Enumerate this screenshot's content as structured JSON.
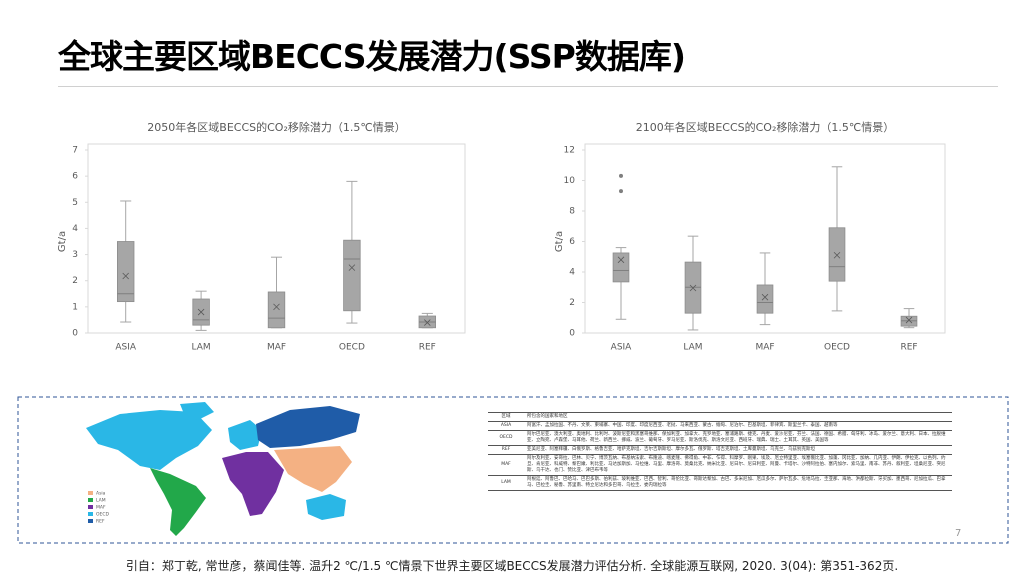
{
  "title": "全球主要区域BECCS发展潜力(SSP数据库)",
  "chart_data": [
    {
      "type": "box",
      "title": "2050年各区域BECCS的CO₂移除潜力（1.5℃情景）",
      "y_label": "Gt/a",
      "color": "#a6a6a6",
      "categories": [
        "ASIA",
        "LAM",
        "MAF",
        "OECD",
        "REF"
      ],
      "boxes": [
        {
          "min": 0.42,
          "q1": 1.2,
          "median": 1.5,
          "q3": 3.5,
          "max": 5.05,
          "mean": 2.18,
          "outliers": []
        },
        {
          "min": 0.1,
          "q1": 0.3,
          "median": 0.5,
          "q3": 1.3,
          "max": 1.6,
          "mean": 0.8,
          "outliers": []
        },
        {
          "min": 0.2,
          "q1": 0.2,
          "median": 0.57,
          "q3": 1.57,
          "max": 2.9,
          "mean": 1.0,
          "outliers": []
        },
        {
          "min": 0.38,
          "q1": 0.85,
          "median": 2.83,
          "q3": 3.55,
          "max": 5.8,
          "mean": 2.5,
          "outliers": []
        },
        {
          "min": 0.2,
          "q1": 0.2,
          "median": 0.42,
          "q3": 0.65,
          "max": 0.75,
          "mean": 0.4,
          "outliers": []
        }
      ],
      "ylim": [
        0,
        7
      ],
      "yticks": [
        0,
        1,
        2,
        3,
        4,
        5,
        6,
        7
      ],
      "grid": false
    },
    {
      "type": "box",
      "title": "2100年各区域BECCS的CO₂移除潜力（1.5℃情景）",
      "y_label": "Gt/a",
      "color": "#a6a6a6",
      "categories": [
        "ASIA",
        "LAM",
        "MAF",
        "OECD",
        "REF"
      ],
      "boxes": [
        {
          "min": 0.9,
          "q1": 3.35,
          "median": 4.1,
          "q3": 5.25,
          "max": 5.6,
          "mean": 4.8,
          "outliers": [
            10.3,
            9.3
          ]
        },
        {
          "min": 0.2,
          "q1": 1.3,
          "median": 3.0,
          "q3": 4.65,
          "max": 6.35,
          "mean": 2.95,
          "outliers": []
        },
        {
          "min": 0.55,
          "q1": 1.3,
          "median": 2.0,
          "q3": 3.15,
          "max": 5.25,
          "mean": 2.35,
          "outliers": []
        },
        {
          "min": 1.45,
          "q1": 3.4,
          "median": 4.35,
          "q3": 6.9,
          "max": 10.9,
          "mean": 5.1,
          "outliers": []
        },
        {
          "min": 0.35,
          "q1": 0.45,
          "median": 0.8,
          "q3": 1.1,
          "max": 1.6,
          "mean": 0.85,
          "outliers": []
        }
      ],
      "ylim": [
        0,
        12
      ],
      "yticks": [
        0,
        2,
        4,
        6,
        8,
        10,
        12
      ],
      "grid": false
    }
  ],
  "map": {
    "legend": [
      "Asia",
      "LAM",
      "MAF",
      "OECD",
      "REF"
    ]
  },
  "table": {
    "header": [
      "区域",
      "所包含的国家和地区"
    ],
    "rows": [
      [
        "ASIA",
        "阿富汗、孟加拉国、不丹、文莱、柬埔寨、中国、印度、印度尼西亚、老挝、马来西亚、蒙古、缅甸、尼泊尔、巴基斯坦、菲律宾、斯里兰卡、泰国、越南等"
      ],
      [
        "OECD",
        "阿尔巴尼亚、澳大利亚、奥地利、比利时、波斯尼亚和黑塞哥维那、保加利亚、加拿大、克罗地亚、塞浦路斯、捷克、丹麦、爱沙尼亚、芬兰、法国、德国、希腊、匈牙利、冰岛、爱尔兰、意大利、日本、拉脱维亚、立陶宛、卢森堡、马耳他、荷兰、新西兰、挪威、波兰、葡萄牙、罗马尼亚、斯洛伐克、斯洛文尼亚、西班牙、瑞典、瑞士、土耳其、英国、美国等"
      ],
      [
        "REF",
        "亚美尼亚、阿塞拜疆、白俄罗斯、格鲁吉亚、哈萨克斯坦、吉尔吉斯斯坦、摩尔多瓦、俄罗斯、塔吉克斯坦、土库曼斯坦、乌克兰、乌兹别克斯坦"
      ],
      [
        "MAF",
        "阿尔及利亚、安哥拉、巴林、贝宁、博茨瓦纳、布基纳法索、布隆迪、喀麦隆、佛得角、中非、乍得、科摩罗、刚果、埃及、厄立特里亚、埃塞俄比亚、加蓬、冈比亚、加纳、几内亚、伊朗、伊拉克、以色列、约旦、肯尼亚、科威特、黎巴嫩、利比亚、马达加斯加、马拉维、马里、摩洛哥、莫桑比克、纳米比亚、尼日尔、尼日利亚、阿曼、卡塔尔、沙特阿拉伯、塞内加尔、索马里、南非、苏丹、叙利亚、坦桑尼亚、突尼斯、乌干达、也门、赞比亚、津巴布韦等"
      ],
      [
        "LAM",
        "阿根廷、阿鲁巴、巴哈马、巴巴多斯、伯利兹、玻利维亚、巴西、智利、哥伦比亚、哥斯达黎加、古巴、多米尼加、厄瓜多尔、萨尔瓦多、危地马拉、圭亚那、海地、洪都拉斯、牙买加、墨西哥、尼加拉瓜、巴拿马、巴拉圭、秘鲁、苏里南、特立尼达和多巴哥、乌拉圭、委内瑞拉等"
      ]
    ]
  },
  "citation": "引自：郑丁乾, 常世彦，蔡闻佳等. 温升2 ℃/1.5 ℃情景下世界主要区域BECCS发展潜力评估分析. 全球能源互联网, 2020. 3(04): 第351-362页.",
  "page_number": "7"
}
